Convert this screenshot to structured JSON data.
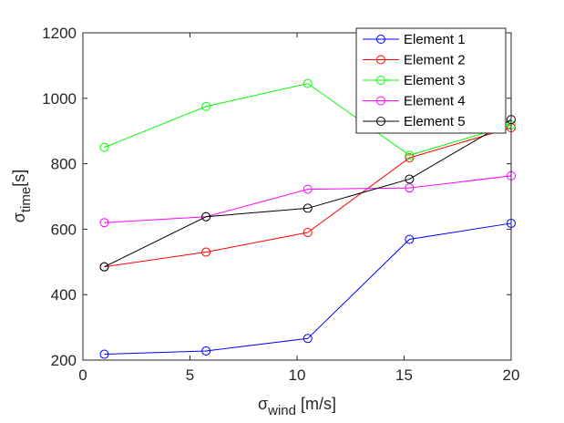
{
  "chart_data": {
    "type": "line",
    "xlim": [
      0,
      20
    ],
    "ylim": [
      200,
      1200
    ],
    "xticks": [
      0,
      5,
      10,
      15,
      20
    ],
    "yticks": [
      200,
      400,
      600,
      800,
      1000,
      1200
    ],
    "xtick_labels": [
      "0",
      "5",
      "10",
      "15",
      "20"
    ],
    "ytick_labels": [
      "200",
      "400",
      "600",
      "800",
      "1000",
      "1200"
    ],
    "xlabel": {
      "main": "σ",
      "sub": "wind",
      "unit": " [m/s]"
    },
    "ylabel": {
      "main": "σ",
      "sub": "time",
      "unit": "[s]"
    },
    "grid": false,
    "legend_position": "top-right",
    "marker": "circle-open",
    "x": [
      1,
      5.75,
      10.5,
      15.25,
      20
    ],
    "series": [
      {
        "name": "Element 1",
        "color": "#0000ff",
        "values": [
          218,
          228,
          266,
          569,
          618
        ]
      },
      {
        "name": "Element 2",
        "color": "#ff0000",
        "values": [
          485,
          530,
          590,
          818,
          910
        ]
      },
      {
        "name": "Element 3",
        "color": "#00ff00",
        "values": [
          850,
          975,
          1045,
          826,
          918
        ]
      },
      {
        "name": "Element 4",
        "color": "#ff00ff",
        "values": [
          620,
          638,
          722,
          726,
          763
        ]
      },
      {
        "name": "Element 5",
        "color": "#000000",
        "values": [
          485,
          638,
          664,
          753,
          935
        ]
      }
    ]
  }
}
